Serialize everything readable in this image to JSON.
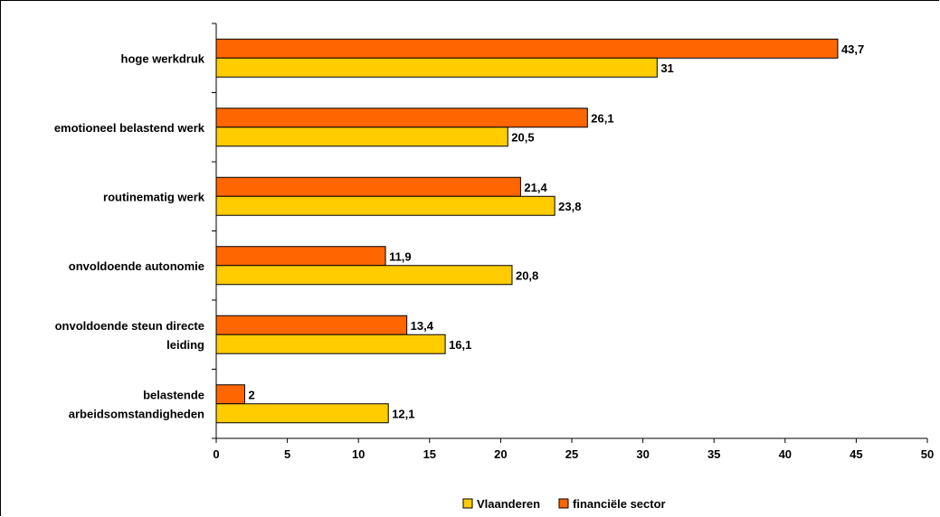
{
  "chart_data": {
    "type": "bar",
    "orientation": "horizontal",
    "categories": [
      "hoge werkdruk",
      "emotioneel belastend werk",
      "routinematig werk",
      "onvoldoende autonomie",
      "onvoldoende steun directe leiding",
      "belastende arbeidsomstandigheden"
    ],
    "category_lines": [
      [
        "hoge werkdruk"
      ],
      [
        "emotioneel belastend werk"
      ],
      [
        "routinematig werk"
      ],
      [
        "onvoldoende autonomie"
      ],
      [
        "onvoldoende steun directe",
        "leiding"
      ],
      [
        "belastende",
        "arbeidsomstandigheden"
      ]
    ],
    "series": [
      {
        "name": "financiële sector",
        "color": "#FF6600",
        "values": [
          43.7,
          26.1,
          21.4,
          11.9,
          13.4,
          2
        ],
        "labels": [
          "43,7",
          "26,1",
          "21,4",
          "11,9",
          "13,4",
          "2"
        ]
      },
      {
        "name": "Vlaanderen",
        "color": "#FFCC00",
        "values": [
          31,
          20.5,
          23.8,
          20.8,
          16.1,
          12.1
        ],
        "labels": [
          "31",
          "20,5",
          "23,8",
          "20,8",
          "16,1",
          "12,1"
        ]
      }
    ],
    "legend_order": [
      "Vlaanderen",
      "financiële sector"
    ],
    "xlim": [
      0,
      50
    ],
    "xticks": [
      0,
      5,
      10,
      15,
      20,
      25,
      30,
      35,
      40,
      45,
      50
    ],
    "title": "",
    "xlabel": "",
    "ylabel": "",
    "grid": false,
    "legend_position": "bottom"
  }
}
